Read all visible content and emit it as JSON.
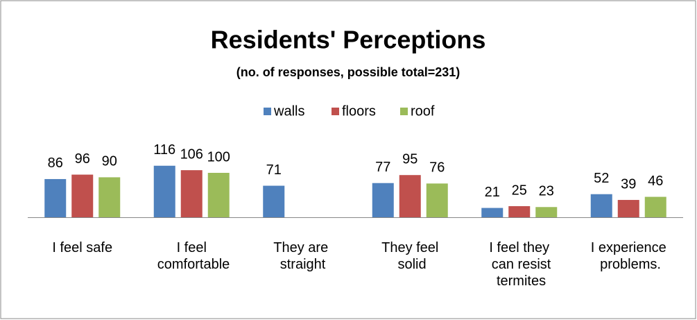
{
  "chart_data": {
    "type": "bar",
    "title": "Residents' Perceptions",
    "subtitle": "(no. of responses, possible total=231)",
    "categories": [
      "I feel safe",
      "I feel comfortable",
      "They are straight",
      "They feel solid",
      "I feel they can resist termites",
      "I experience problems."
    ],
    "series": [
      {
        "name": "walls",
        "color": "#4f81bd",
        "values": [
          86,
          116,
          71,
          77,
          21,
          52
        ]
      },
      {
        "name": "floors",
        "color": "#c0504d",
        "values": [
          96,
          106,
          null,
          95,
          25,
          39
        ]
      },
      {
        "name": "roof",
        "color": "#9bbb59",
        "values": [
          90,
          100,
          null,
          76,
          23,
          46
        ]
      }
    ],
    "legend": "top"
  }
}
